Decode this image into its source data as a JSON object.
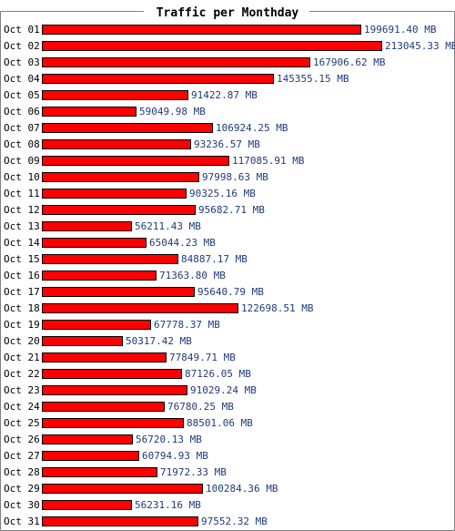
{
  "colors": {
    "bar_fill": "#ff0000",
    "bar_stroke": "#000000",
    "value_text": "#1f3a7a",
    "frame": "#808080",
    "background": "#ffffff"
  },
  "chart_data": {
    "type": "bar",
    "orientation": "horizontal",
    "title": "Traffic per Monthday",
    "unit": "MB",
    "grid": false,
    "legend": "none",
    "xlim": [
      0,
      213045.33
    ],
    "categories": [
      "Oct 01",
      "Oct 02",
      "Oct 03",
      "Oct 04",
      "Oct 05",
      "Oct 06",
      "Oct 07",
      "Oct 08",
      "Oct 09",
      "Oct 10",
      "Oct 11",
      "Oct 12",
      "Oct 13",
      "Oct 14",
      "Oct 15",
      "Oct 16",
      "Oct 17",
      "Oct 18",
      "Oct 19",
      "Oct 20",
      "Oct 21",
      "Oct 22",
      "Oct 23",
      "Oct 24",
      "Oct 25",
      "Oct 26",
      "Oct 27",
      "Oct 28",
      "Oct 29",
      "Oct 30",
      "Oct 31"
    ],
    "values": [
      199691.4,
      213045.33,
      167906.62,
      145355.15,
      91422.87,
      59049.98,
      106924.25,
      93236.57,
      117085.91,
      97998.63,
      90325.16,
      95682.71,
      56211.43,
      65044.23,
      84887.17,
      71363.8,
      95640.79,
      122698.51,
      67778.37,
      50317.42,
      77849.71,
      87126.05,
      91029.24,
      76780.25,
      88501.06,
      56720.13,
      60794.93,
      71972.33,
      100284.36,
      56231.16,
      97552.32
    ],
    "value_labels": [
      "199691.40 MB",
      "213045.33 MB",
      "167906.62 MB",
      "145355.15 MB",
      "91422.87 MB",
      "59049.98 MB",
      "106924.25 MB",
      "93236.57 MB",
      "117085.91 MB",
      "97998.63 MB",
      "90325.16 MB",
      "95682.71 MB",
      "56211.43 MB",
      "65044.23 MB",
      "84887.17 MB",
      "71363.80 MB",
      "95640.79 MB",
      "122698.51 MB",
      "67778.37 MB",
      "50317.42 MB",
      "77849.71 MB",
      "87126.05 MB",
      "91029.24 MB",
      "76780.25 MB",
      "88501.06 MB",
      "56720.13 MB",
      "60794.93 MB",
      "71972.33 MB",
      "100284.36 MB",
      "56231.16 MB",
      "97552.32 MB"
    ]
  }
}
